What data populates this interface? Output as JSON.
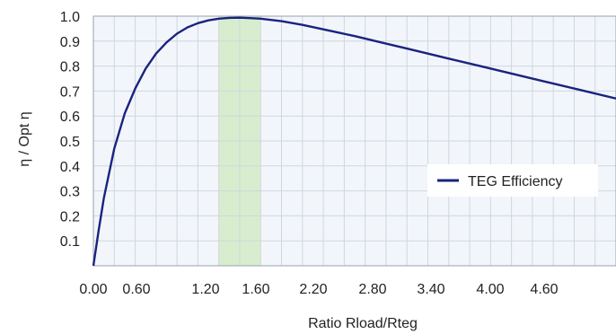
{
  "chart_data": {
    "type": "line",
    "xlabel": "Ratio Rload/Rteg",
    "ylabel": "η / Opt η",
    "xlim": [
      0,
      5
    ],
    "ylim": [
      0,
      1.0
    ],
    "x_ticks": [
      0.0,
      0.6,
      1.2,
      1.6,
      2.2,
      2.8,
      3.4,
      4.0,
      4.6
    ],
    "x_tick_labels": [
      "0.00",
      "0.60",
      "1.20",
      "1.60",
      "2.20",
      "2.80",
      "3.40",
      "4.00",
      "4.60"
    ],
    "y_ticks": [
      0.1,
      0.2,
      0.3,
      0.4,
      0.5,
      0.6,
      0.7,
      0.8,
      0.9,
      1.0
    ],
    "y_tick_labels": [
      "0.1",
      "0.2",
      "0.3",
      "0.4",
      "0.5",
      "0.6",
      "0.7",
      "0.8",
      "0.9",
      "1.0"
    ],
    "highlight_band": {
      "x_start": 1.2,
      "x_end": 1.6,
      "color": "#d4ebc6"
    },
    "grid": true,
    "legend_position": "right",
    "series": [
      {
        "name": "TEG Efficiency",
        "color": "#1a237e",
        "x": [
          0.0,
          0.05,
          0.1,
          0.2,
          0.3,
          0.4,
          0.5,
          0.6,
          0.7,
          0.8,
          0.9,
          1.0,
          1.1,
          1.2,
          1.3,
          1.4,
          1.5,
          1.6,
          1.8,
          2.0,
          2.2,
          2.5,
          2.8,
          3.0,
          3.4,
          3.7,
          4.0,
          4.3,
          4.6,
          5.0
        ],
        "values": [
          0.0,
          0.14,
          0.27,
          0.47,
          0.61,
          0.71,
          0.79,
          0.85,
          0.895,
          0.93,
          0.955,
          0.972,
          0.983,
          0.99,
          0.993,
          0.994,
          0.992,
          0.99,
          0.98,
          0.965,
          0.947,
          0.92,
          0.89,
          0.87,
          0.83,
          0.8,
          0.77,
          0.74,
          0.71,
          0.67
        ]
      }
    ]
  }
}
